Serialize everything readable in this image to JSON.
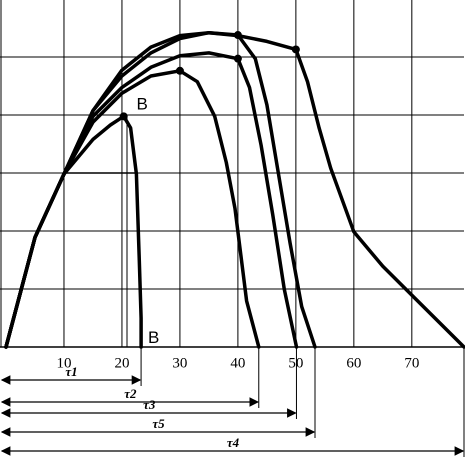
{
  "chart_data": {
    "type": "line",
    "xlim": [
      0,
      79
    ],
    "ylim": [
      0,
      6
    ],
    "xticks": [
      10,
      20,
      30,
      40,
      50,
      60,
      70
    ],
    "grid": true,
    "color": "#000000",
    "series": [
      {
        "x": [
          0,
          5,
          10,
          15,
          18,
          20.3,
          21.5,
          22.5,
          23,
          23.3,
          23.3
        ],
        "values": [
          0,
          1.9,
          3,
          3.6,
          3.85,
          4,
          3.8,
          3,
          1.5,
          0.5,
          0
        ]
      },
      {
        "x": [
          0,
          5,
          10,
          15,
          20,
          25,
          30,
          33,
          36,
          38,
          39.5,
          40.5,
          41.5,
          43.6
        ],
        "values": [
          0,
          1.9,
          3,
          3.9,
          4.4,
          4.7,
          4.79,
          4.6,
          4,
          3.2,
          2.4,
          1.6,
          0.8,
          0
        ]
      },
      {
        "x": [
          0,
          5,
          10,
          15,
          20,
          25,
          30,
          35,
          40,
          42,
          44,
          46,
          48,
          50.1
        ],
        "values": [
          0,
          1.9,
          3,
          4,
          4.5,
          4.85,
          5.05,
          5.1,
          5.0,
          4.5,
          3.5,
          2.3,
          1,
          0
        ]
      },
      {
        "x": [
          0,
          5,
          10,
          15,
          20,
          25,
          30,
          35,
          40,
          43,
          45,
          47,
          49,
          51,
          53.3
        ],
        "values": [
          0,
          1.9,
          3,
          4.1,
          4.7,
          5.1,
          5.35,
          5.45,
          5.41,
          5,
          4.2,
          3,
          1.8,
          0.7,
          0
        ]
      },
      {
        "x": [
          0,
          5,
          10,
          15,
          20,
          25,
          30,
          35,
          40,
          45,
          50,
          52,
          54,
          56,
          60,
          65,
          70,
          79
        ],
        "values": [
          0,
          1.9,
          3,
          4.1,
          4.8,
          5.2,
          5.4,
          5.45,
          5.4,
          5.3,
          5.16,
          4.6,
          3.8,
          3.1,
          2.0,
          1.4,
          0.9,
          0
        ]
      }
    ],
    "points": {
      "x": [
        20.3,
        30,
        40,
        40,
        50
      ],
      "values": [
        4,
        4.79,
        5.0,
        5.41,
        5.16
      ]
    },
    "annotations": [
      {
        "text": "B",
        "x": 22.5,
        "y": 4.2
      },
      {
        "text": "B",
        "x": 24.5,
        "y": 0.15
      }
    ],
    "intervals": [
      {
        "label": "τ1",
        "end": 23.3
      },
      {
        "label": "τ2",
        "end": 43.6
      },
      {
        "label": "τ3",
        "end": 50.1
      },
      {
        "label": "τ5",
        "end": 53.3
      },
      {
        "label": "τ4",
        "end": 79
      }
    ]
  }
}
